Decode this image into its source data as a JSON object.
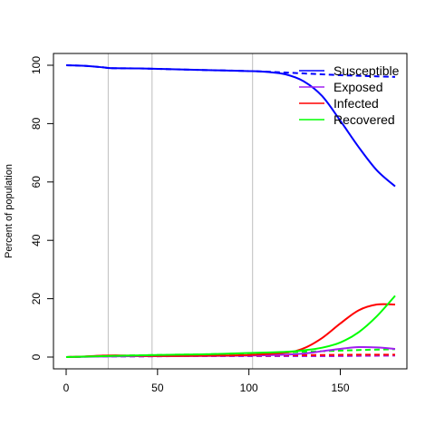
{
  "chart_data": {
    "type": "line",
    "title": "",
    "xlabel": "",
    "ylabel": "Percent of population",
    "xlim": [
      0,
      180
    ],
    "ylim": [
      0,
      100
    ],
    "xticks": [
      0,
      50,
      100,
      150
    ],
    "yticks": [
      0,
      20,
      40,
      60,
      80,
      100
    ],
    "vlines": [
      23,
      47,
      102
    ],
    "legend_position": "top-right",
    "series": [
      {
        "name": "Susceptible",
        "color": "#0000ff",
        "dash": false,
        "x": [
          0,
          10,
          20,
          25,
          40,
          60,
          80,
          100,
          110,
          120,
          130,
          140,
          150,
          160,
          170,
          180
        ],
        "y": [
          100,
          99.8,
          99.3,
          99,
          98.9,
          98.6,
          98.3,
          98,
          97.7,
          96.9,
          94.5,
          89.5,
          81,
          72,
          64,
          58.5
        ]
      },
      {
        "name": "Susceptible",
        "color": "#0000ff",
        "dash": true,
        "x": [
          0,
          10,
          20,
          25,
          40,
          60,
          80,
          100,
          110,
          120,
          130,
          140,
          150,
          160,
          170,
          180
        ],
        "y": [
          100,
          99.8,
          99.3,
          99,
          98.9,
          98.6,
          98.3,
          98,
          97.8,
          97.5,
          97.2,
          96.9,
          96.6,
          96.4,
          96.2,
          96
        ]
      },
      {
        "name": "Exposed",
        "color": "#a020f0",
        "dash": false,
        "x": [
          0,
          20,
          40,
          60,
          80,
          100,
          120,
          130,
          140,
          150,
          160,
          170,
          180
        ],
        "y": [
          0,
          0.2,
          0.3,
          0.3,
          0.4,
          0.5,
          0.8,
          1.2,
          2,
          2.8,
          3.4,
          3.3,
          2.8
        ]
      },
      {
        "name": "Exposed",
        "color": "#a020f0",
        "dash": true,
        "x": [
          0,
          20,
          40,
          60,
          80,
          100,
          120,
          140,
          160,
          180
        ],
        "y": [
          0,
          0.2,
          0.2,
          0.3,
          0.3,
          0.3,
          0.3,
          0.3,
          0.4,
          0.5
        ]
      },
      {
        "name": "Infected",
        "color": "#ff0000",
        "dash": false,
        "x": [
          0,
          10,
          20,
          27,
          35,
          50,
          60,
          80,
          100,
          120,
          130,
          140,
          150,
          160,
          170,
          180
        ],
        "y": [
          0,
          0.2,
          0.5,
          0.6,
          0.5,
          0.4,
          0.4,
          0.5,
          0.7,
          1.5,
          3,
          6.5,
          11.5,
          16,
          18,
          18
        ]
      },
      {
        "name": "Infected",
        "color": "#ff0000",
        "dash": true,
        "x": [
          0,
          20,
          40,
          60,
          80,
          100,
          120,
          140,
          160,
          180
        ],
        "y": [
          0,
          0.3,
          0.4,
          0.4,
          0.5,
          0.5,
          0.6,
          0.7,
          0.8,
          0.8
        ]
      },
      {
        "name": "Recovered",
        "color": "#00ff00",
        "dash": false,
        "x": [
          0,
          20,
          40,
          60,
          80,
          100,
          120,
          130,
          140,
          150,
          160,
          170,
          180
        ],
        "y": [
          0,
          0.3,
          0.6,
          0.8,
          1,
          1.4,
          1.8,
          2.3,
          3.2,
          5,
          8.5,
          14,
          21
        ]
      },
      {
        "name": "Recovered",
        "color": "#00ff00",
        "dash": true,
        "x": [
          0,
          20,
          40,
          60,
          80,
          100,
          120,
          140,
          160,
          180
        ],
        "y": [
          0,
          0.3,
          0.6,
          0.8,
          1,
          1.3,
          1.6,
          2,
          2.4,
          2.7
        ]
      }
    ],
    "legend": [
      {
        "label": "Susceptible",
        "color": "#0000ff"
      },
      {
        "label": "Exposed",
        "color": "#a020f0"
      },
      {
        "label": "Infected",
        "color": "#ff0000"
      },
      {
        "label": "Recovered",
        "color": "#00ff00"
      }
    ]
  }
}
